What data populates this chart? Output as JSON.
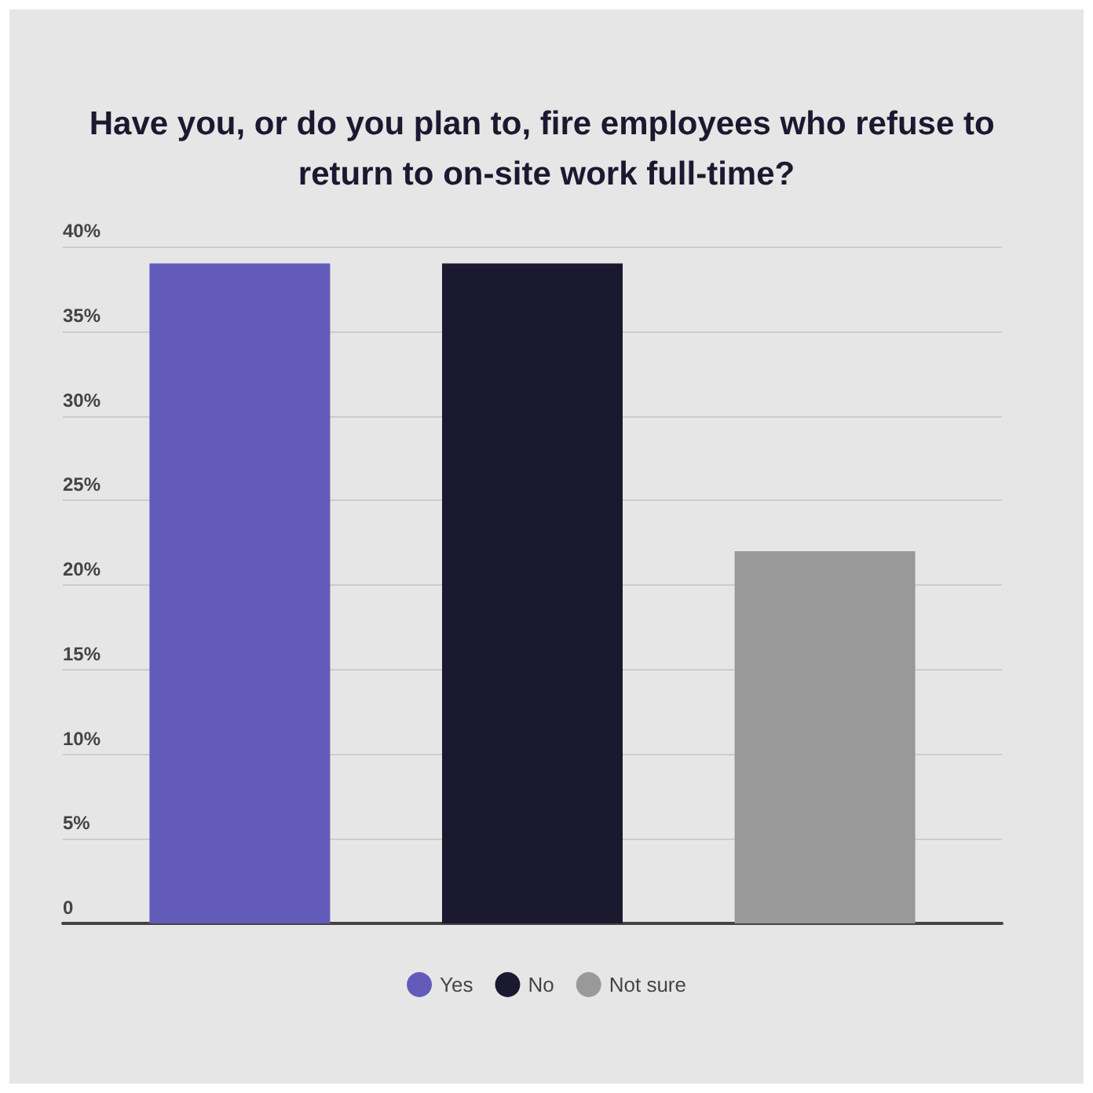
{
  "chart_data": {
    "type": "bar",
    "title": "Have you, or do you plan to, fire employees who refuse to return to on-site work full-time?",
    "categories": [
      null
    ],
    "series": [
      {
        "name": "Yes",
        "color": "#635bb9",
        "values": [
          39
        ]
      },
      {
        "name": "No",
        "color": "#1b1930",
        "values": [
          39
        ]
      },
      {
        "name": "Not sure",
        "color": "#999999",
        "values": [
          22
        ]
      }
    ],
    "ylim": [
      0,
      40
    ],
    "yticks": [
      0,
      {
        "value": 5,
        "label": "5%"
      },
      {
        "value": 10,
        "label": "10%"
      },
      {
        "value": 15,
        "label": "15%"
      },
      {
        "value": 20,
        "label": "20%"
      },
      {
        "value": 25,
        "label": "25%"
      },
      {
        "value": 30,
        "label": "30%"
      },
      {
        "value": 35,
        "label": "35%"
      },
      {
        "value": 40,
        "label": "40%"
      }
    ],
    "grid": "y",
    "legend": "bottom"
  }
}
